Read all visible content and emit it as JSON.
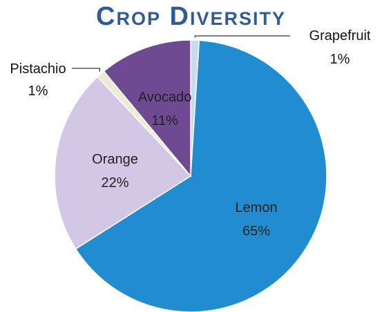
{
  "chart_data": {
    "type": "pie",
    "title": "Crop Diversity",
    "slices": [
      {
        "label": "Grapefruit",
        "value": 1,
        "pct_label": "1%",
        "color": "#c6daf0",
        "label_mode": "external"
      },
      {
        "label": "Lemon",
        "value": 65,
        "pct_label": "65%",
        "color": "#218ccf",
        "label_mode": "internal"
      },
      {
        "label": "Orange",
        "value": 22,
        "pct_label": "22%",
        "color": "#d2c7e4",
        "label_mode": "internal"
      },
      {
        "label": "Pistachio",
        "value": 1,
        "pct_label": "1%",
        "color": "#ecebd3",
        "label_mode": "external"
      },
      {
        "label": "Avocado",
        "value": 11,
        "pct_label": "11%",
        "color": "#6e4a93",
        "label_mode": "internal"
      }
    ],
    "legend": "none",
    "label_colors": {
      "internal_text": "#222222",
      "external_text": "#111111",
      "leader_line": "#333333"
    }
  }
}
